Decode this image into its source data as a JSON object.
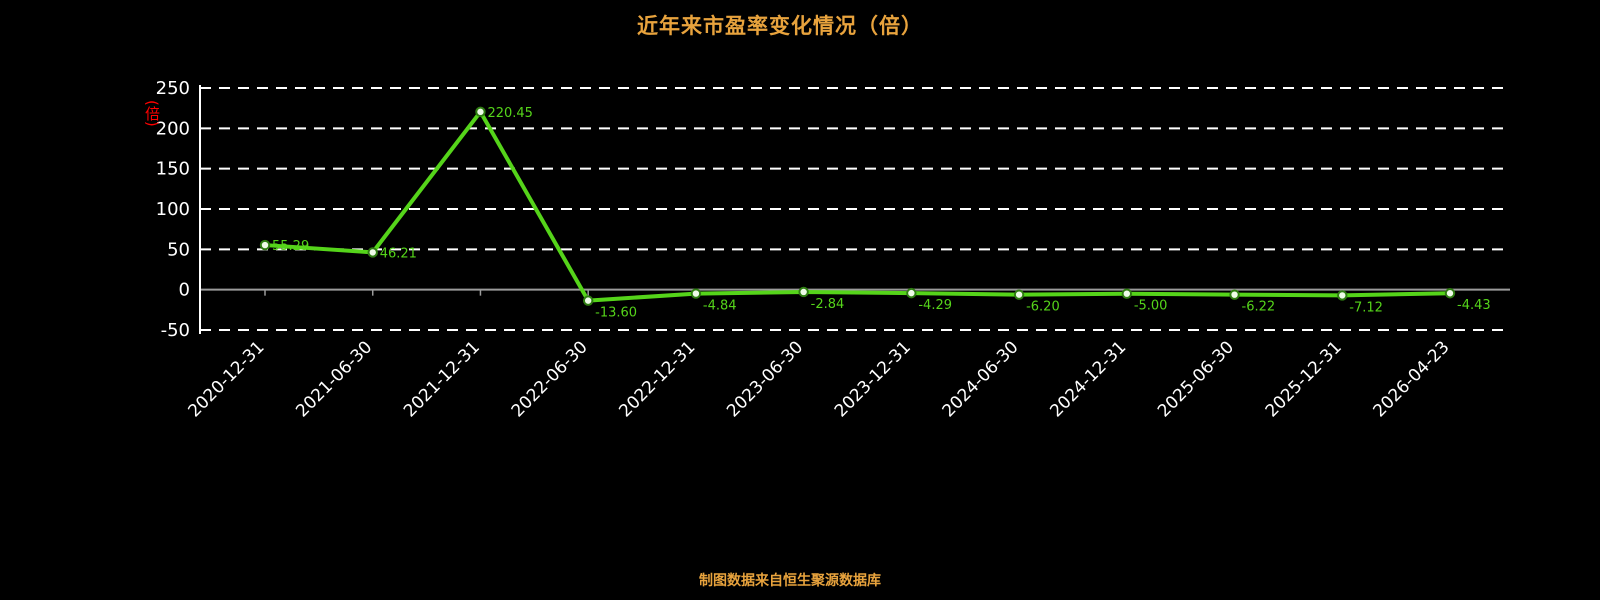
{
  "title": "近年来市盈率变化情况（倍）",
  "footer": "制图数据来自恒生聚源数据库",
  "colors": {
    "background": "#000000",
    "title": "#e8a33d",
    "footer": "#e8a33d",
    "line": "#55d41a",
    "marker_fill": "#eefbe8",
    "marker_stroke": "#2f7d12",
    "grid": "#ffffff",
    "zero_axis": "#9b9b9b",
    "y_axis": "#ffffff",
    "tick_text": "#ffffff",
    "unit_label": "#ff0000",
    "point_label": "#55d41a"
  },
  "y_axis": {
    "unit_label": "(倍)",
    "ticks": [
      250,
      200,
      150,
      100,
      50,
      0,
      -50
    ]
  },
  "chart_data": {
    "type": "line",
    "title": "近年来市盈率变化情况（倍）",
    "xlabel": "",
    "ylabel": "(倍)",
    "ylim": [
      -50,
      250
    ],
    "grid": "horizontal-dashed-white",
    "legend": "none",
    "categories": [
      "2020-12-31",
      "2021-06-30",
      "2021-12-31",
      "2022-06-30",
      "2022-12-31",
      "2023-06-30",
      "2023-12-31",
      "2024-06-30",
      "2024-12-31",
      "2025-06-30",
      "2025-12-31",
      "2026-04-23"
    ],
    "values": [
      55.29,
      46.21,
      220.45,
      -13.6,
      -4.84,
      -2.84,
      -4.29,
      -6.2,
      -5.0,
      -6.22,
      -7.12,
      -4.43
    ],
    "point_labels": [
      "55.29",
      "46.21",
      "220.45",
      "-13.60",
      "-4.84",
      "-2.84",
      "-4.29",
      "-6.20",
      "-5.00",
      "-6.22",
      "-7.12",
      "-4.43"
    ]
  }
}
